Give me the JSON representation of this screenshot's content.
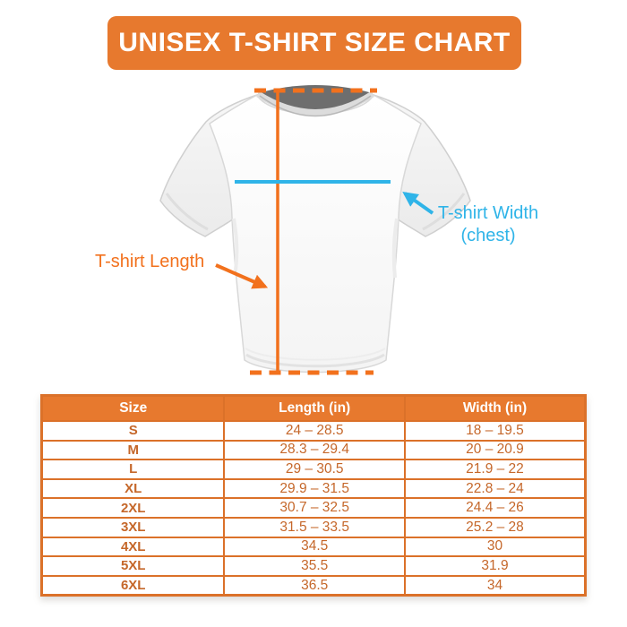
{
  "banner": {
    "title": "UNISEX T-SHIRT SIZE CHART"
  },
  "diagram": {
    "length_label": "T-shirt Length",
    "width_label": "T-shirt Width",
    "width_sublabel": "(chest)"
  },
  "table": {
    "headers": [
      "Size",
      "Length (in)",
      "Width (in)"
    ],
    "rows": [
      [
        "S",
        "24 – 28.5",
        "18 – 19.5"
      ],
      [
        "M",
        "28.3 – 29.4",
        "20 – 20.9"
      ],
      [
        "L",
        "29 – 30.5",
        "21.9 – 22"
      ],
      [
        "XL",
        "29.9 – 31.5",
        "22.8 – 24"
      ],
      [
        "2XL",
        "30.7 – 32.5",
        "24.4 – 26"
      ],
      [
        "3XL",
        "31.5 – 33.5",
        "25.2 – 28"
      ],
      [
        "4XL",
        "34.5",
        "30"
      ],
      [
        "5XL",
        "35.5",
        "31.9"
      ],
      [
        "6XL",
        "36.5",
        "34"
      ]
    ]
  },
  "colors": {
    "orange_banner": "#E7792E",
    "orange_bright": "#F2711D",
    "cyan": "#2FB4E8",
    "table_border": "#DB7129",
    "table_header_bg": "#E7792E",
    "table_text": "#C5672A",
    "collar_gray": "#6E6E6E"
  }
}
